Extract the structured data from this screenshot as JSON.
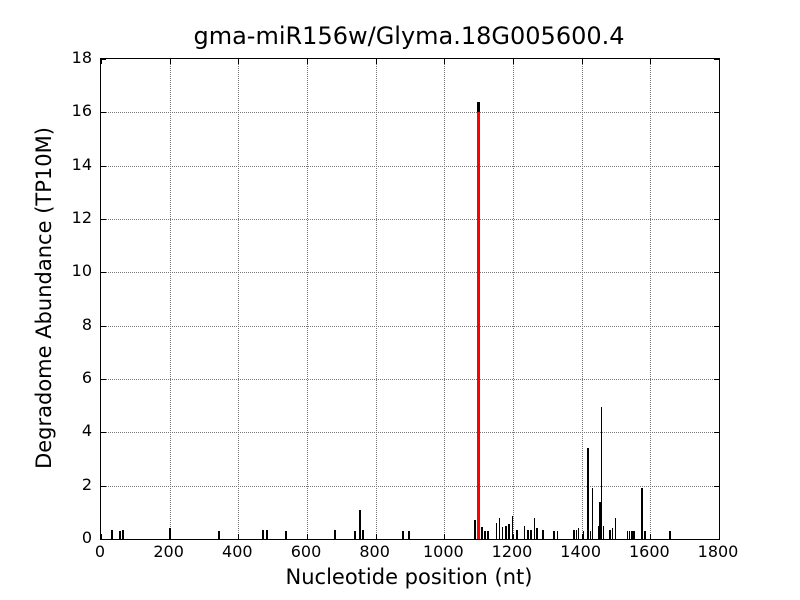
{
  "figure": {
    "background": "#ffffff",
    "axes_color": "#000000",
    "grid_color": "#777777",
    "accent_red": "#ff0000"
  },
  "chart_data": {
    "type": "bar",
    "title": "gma-miR156w/Glyma.18G005600.4",
    "xlabel": "Nucleotide position (nt)",
    "ylabel": "Degradome Abundance (TP10M)",
    "xlim": [
      0,
      1800
    ],
    "ylim": [
      0,
      18
    ],
    "x_ticks": [
      0,
      200,
      400,
      600,
      800,
      1000,
      1200,
      1400,
      1600,
      1800
    ],
    "y_ticks": [
      0,
      2,
      4,
      6,
      8,
      10,
      12,
      14,
      16,
      18
    ],
    "grid": "dotted",
    "legend": "none",
    "bar_color": "#000000",
    "highlight_color": "#ff0000",
    "highlight_note": "red spike = miRNA cleavage site at nt 1100, abundance 16.0 (black tip peak 16.4)",
    "spikes": [
      {
        "x": 32,
        "y": 0.35
      },
      {
        "x": 55,
        "y": 0.3
      },
      {
        "x": 64,
        "y": 0.35
      },
      {
        "x": 201,
        "y": 0.4
      },
      {
        "x": 344,
        "y": 0.3
      },
      {
        "x": 472,
        "y": 0.35
      },
      {
        "x": 483,
        "y": 0.35
      },
      {
        "x": 539,
        "y": 0.3
      },
      {
        "x": 682,
        "y": 0.35
      },
      {
        "x": 740,
        "y": 0.3
      },
      {
        "x": 755,
        "y": 1.1
      },
      {
        "x": 763,
        "y": 0.35
      },
      {
        "x": 879,
        "y": 0.3
      },
      {
        "x": 897,
        "y": 0.3
      },
      {
        "x": 1090,
        "y": 0.7
      },
      {
        "x": 1100,
        "y": 16.4,
        "w": 3
      },
      {
        "x": 1100,
        "y": 16.0,
        "c": "#ff0000",
        "w": 3
      },
      {
        "x": 1110,
        "y": 0.45
      },
      {
        "x": 1118,
        "y": 0.3
      },
      {
        "x": 1127,
        "y": 0.3
      },
      {
        "x": 1152,
        "y": 0.6
      },
      {
        "x": 1160,
        "y": 0.8
      },
      {
        "x": 1170,
        "y": 0.45
      },
      {
        "x": 1180,
        "y": 0.5
      },
      {
        "x": 1188,
        "y": 0.55
      },
      {
        "x": 1198,
        "y": 0.85
      },
      {
        "x": 1212,
        "y": 0.35
      },
      {
        "x": 1233,
        "y": 0.5
      },
      {
        "x": 1244,
        "y": 0.35
      },
      {
        "x": 1252,
        "y": 0.35
      },
      {
        "x": 1262,
        "y": 0.8
      },
      {
        "x": 1270,
        "y": 0.4
      },
      {
        "x": 1288,
        "y": 0.35
      },
      {
        "x": 1319,
        "y": 0.3
      },
      {
        "x": 1330,
        "y": 0.3
      },
      {
        "x": 1377,
        "y": 0.35
      },
      {
        "x": 1385,
        "y": 0.35
      },
      {
        "x": 1391,
        "y": 0.4
      },
      {
        "x": 1406,
        "y": 0.3
      },
      {
        "x": 1418,
        "y": 3.4
      },
      {
        "x": 1425,
        "y": 0.3
      },
      {
        "x": 1431,
        "y": 1.9
      },
      {
        "x": 1450,
        "y": 0.5
      },
      {
        "x": 1453,
        "y": 1.4
      },
      {
        "x": 1458,
        "y": 4.95
      },
      {
        "x": 1463,
        "y": 0.5
      },
      {
        "x": 1483,
        "y": 0.35
      },
      {
        "x": 1490,
        "y": 0.4
      },
      {
        "x": 1499,
        "y": 0.8
      },
      {
        "x": 1533,
        "y": 0.3
      },
      {
        "x": 1540,
        "y": 0.3
      },
      {
        "x": 1546,
        "y": 0.3
      },
      {
        "x": 1552,
        "y": 0.3
      },
      {
        "x": 1576,
        "y": 1.9
      },
      {
        "x": 1584,
        "y": 0.3
      },
      {
        "x": 1658,
        "y": 0.3
      }
    ]
  }
}
